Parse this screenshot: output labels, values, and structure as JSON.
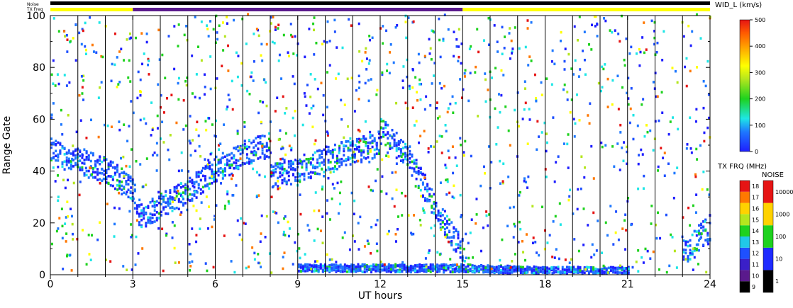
{
  "chart_data": {
    "type": "heatmap",
    "title": "",
    "xlabel": "UT hours",
    "ylabel": "Range Gate",
    "xlim": [
      0,
      24
    ],
    "ylim": [
      0,
      100
    ],
    "xticks": [
      "0",
      "3",
      "6",
      "9",
      "12",
      "15",
      "18",
      "21",
      "24"
    ],
    "yticks": [
      "0",
      "20",
      "40",
      "60",
      "80",
      "100"
    ],
    "status_bars": {
      "noise_label": "Noise",
      "txfreq_label": "TX Freq",
      "segments": [
        {
          "start": 0,
          "end": 3,
          "color": "#ffff00"
        },
        {
          "start": 3,
          "end": 15,
          "color": "#5a1a8c"
        },
        {
          "start": 15,
          "end": 24,
          "color": "#ffff00"
        }
      ]
    },
    "scan_boundaries_hours": [
      1,
      2,
      3,
      4,
      5,
      6,
      7,
      8,
      9,
      10,
      11,
      12,
      13,
      14,
      15,
      16,
      17,
      18,
      19,
      20,
      21,
      22,
      23
    ],
    "colorbar_width": {
      "label": "WID_L (km/s)",
      "ticks": [
        "0",
        "100",
        "200",
        "300",
        "400",
        "500"
      ],
      "min": 0,
      "max": 500
    },
    "colorbar_txfreq": {
      "label": "TX FRQ (MHz)",
      "ticks": [
        "9",
        "10",
        "11",
        "12",
        "13",
        "14",
        "15",
        "16",
        "17",
        "18"
      ],
      "colors": [
        "#000000",
        "#5a1a8c",
        "#3a1fc8",
        "#1e50ff",
        "#20c8e8",
        "#1ed21e",
        "#b4e61e",
        "#ffd200",
        "#ff7800",
        "#e61414"
      ]
    },
    "colorbar_noise": {
      "label": "NOISE",
      "ticks": [
        "1",
        "10",
        "100",
        "1000",
        "10000"
      ],
      "colors": [
        "#000000",
        "#1e2aff",
        "#1ed21e",
        "#ffd200",
        "#e61414"
      ]
    },
    "series": [
      {
        "region": "main scatter band",
        "x": [
          0,
          1,
          2,
          3,
          3.2,
          4,
          5,
          6,
          7,
          8
        ],
        "y": [
          47,
          43,
          40,
          32,
          22,
          26,
          32,
          40,
          46,
          50
        ]
      },
      {
        "region": "mid band",
        "x": [
          8,
          9,
          10,
          11,
          12
        ],
        "y": [
          38,
          40,
          44,
          47,
          50
        ]
      },
      {
        "region": "descending band",
        "x": [
          12,
          13,
          14,
          15
        ],
        "y": [
          55,
          45,
          25,
          8
        ]
      },
      {
        "region": "ground scatter",
        "x": [
          9,
          12,
          15,
          18,
          21
        ],
        "y": [
          2,
          2,
          2,
          1,
          1
        ]
      },
      {
        "region": "late band",
        "x": [
          23,
          24
        ],
        "y": [
          8,
          18
        ]
      }
    ]
  }
}
